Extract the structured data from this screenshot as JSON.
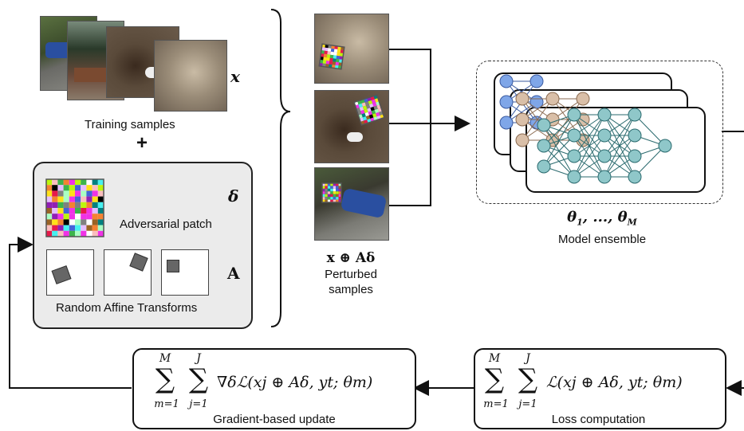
{
  "training": {
    "label": "Training samples",
    "symbol": "x",
    "plus": "+"
  },
  "patch_panel": {
    "patch_label": "Adversarial patch",
    "patch_symbol": "δ",
    "transform_symbol": "A",
    "transforms_label": "Random Affine Transforms"
  },
  "perturbed": {
    "formula": "x ⊕ Aδ",
    "label_line1": "Perturbed",
    "label_line2": "samples"
  },
  "ensemble": {
    "formula": "θ1, ..., θM",
    "label": "Model ensemble"
  },
  "update_box": {
    "formula_upper_outer": "M",
    "formula_lower_outer": "m=1",
    "formula_upper_inner": "J",
    "formula_lower_inner": "j=1",
    "formula_body": "∇δℒ(xj ⊕ Aδ, yt; θm)",
    "label": "Gradient-based update"
  },
  "loss_box": {
    "formula_upper_outer": "M",
    "formula_lower_outer": "m=1",
    "formula_upper_inner": "J",
    "formula_lower_inner": "j=1",
    "formula_body": "ℒ(xj ⊕ Aδ, yt; θm)",
    "label": "Loss computation"
  },
  "colors": {
    "nn_blue": "#7fa6e8",
    "nn_tan": "#d9bfa8",
    "nn_teal": "#8fc7c9",
    "panel_bg": "#ebebeb"
  }
}
